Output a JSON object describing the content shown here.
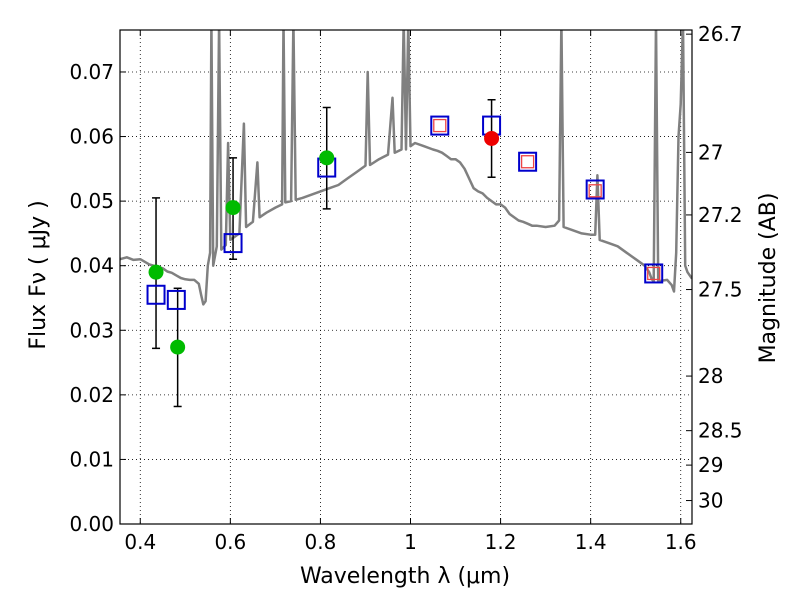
{
  "chart_data": {
    "type": "scatter",
    "xlabel": "Wavelength  λ (μm)",
    "ylabel": "Flux  Fν  ( μJy )",
    "y2label": "Magnitude (AB)",
    "xlim": [
      0.355,
      1.625
    ],
    "ylim": [
      0.0,
      0.0765
    ],
    "grid": true,
    "x_ticks": [
      {
        "value": 0.4,
        "label": "0.4"
      },
      {
        "value": 0.6,
        "label": "0.6"
      },
      {
        "value": 0.8,
        "label": "0.8"
      },
      {
        "value": 1.0,
        "label": "1"
      },
      {
        "value": 1.2,
        "label": "1.2"
      },
      {
        "value": 1.4,
        "label": "1.4"
      },
      {
        "value": 1.6,
        "label": "1.6"
      }
    ],
    "y_ticks": [
      {
        "value": 0.0,
        "label": "0.00"
      },
      {
        "value": 0.01,
        "label": "0.01"
      },
      {
        "value": 0.02,
        "label": "0.02"
      },
      {
        "value": 0.03,
        "label": "0.03"
      },
      {
        "value": 0.04,
        "label": "0.04"
      },
      {
        "value": 0.05,
        "label": "0.05"
      },
      {
        "value": 0.06,
        "label": "0.06"
      },
      {
        "value": 0.07,
        "label": "0.07"
      }
    ],
    "y2_ticks": [
      {
        "value": 26.7,
        "label": "26.7"
      },
      {
        "value": 27,
        "label": "27"
      },
      {
        "value": 27.2,
        "label": "27.2"
      },
      {
        "value": 27.5,
        "label": "27.5"
      },
      {
        "value": 28,
        "label": "28"
      },
      {
        "value": 28.5,
        "label": "28.5"
      },
      {
        "value": 29,
        "label": "29"
      },
      {
        "value": 30,
        "label": "30"
      }
    ],
    "series": [
      {
        "role": "model_sed",
        "color": "#808080",
        "points": [
          [
            0.355,
            0.041
          ],
          [
            0.37,
            0.0413
          ],
          [
            0.385,
            0.0409
          ],
          [
            0.4,
            0.041
          ],
          [
            0.41,
            0.0406
          ],
          [
            0.42,
            0.0402
          ],
          [
            0.43,
            0.04
          ],
          [
            0.44,
            0.0398
          ],
          [
            0.45,
            0.0396
          ],
          [
            0.46,
            0.0391
          ],
          [
            0.47,
            0.0389
          ],
          [
            0.48,
            0.0385
          ],
          [
            0.49,
            0.0381
          ],
          [
            0.5,
            0.0379
          ],
          [
            0.51,
            0.0378
          ],
          [
            0.52,
            0.0378
          ],
          [
            0.53,
            0.0372
          ],
          [
            0.535,
            0.0355
          ],
          [
            0.54,
            0.034
          ],
          [
            0.545,
            0.0345
          ],
          [
            0.55,
            0.04
          ],
          [
            0.555,
            0.042
          ],
          [
            0.558,
            0.078
          ],
          [
            0.562,
            0.04
          ],
          [
            0.57,
            0.043
          ],
          [
            0.575,
            0.078
          ],
          [
            0.58,
            0.0425
          ],
          [
            0.59,
            0.0432
          ],
          [
            0.595,
            0.059
          ],
          [
            0.6,
            0.044
          ],
          [
            0.61,
            0.0445
          ],
          [
            0.62,
            0.045
          ],
          [
            0.63,
            0.062
          ],
          [
            0.635,
            0.046
          ],
          [
            0.65,
            0.0468
          ],
          [
            0.66,
            0.056
          ],
          [
            0.665,
            0.0475
          ],
          [
            0.68,
            0.0482
          ],
          [
            0.7,
            0.049
          ],
          [
            0.715,
            0.0495
          ],
          [
            0.718,
            0.078
          ],
          [
            0.722,
            0.0498
          ],
          [
            0.735,
            0.05
          ],
          [
            0.74,
            0.078
          ],
          [
            0.745,
            0.0502
          ],
          [
            0.76,
            0.0505
          ],
          [
            0.78,
            0.051
          ],
          [
            0.8,
            0.0515
          ],
          [
            0.82,
            0.052
          ],
          [
            0.84,
            0.0525
          ],
          [
            0.86,
            0.0535
          ],
          [
            0.88,
            0.0545
          ],
          [
            0.9,
            0.0555
          ],
          [
            0.905,
            0.07
          ],
          [
            0.91,
            0.0556
          ],
          [
            0.93,
            0.0565
          ],
          [
            0.95,
            0.0572
          ],
          [
            0.96,
            0.066
          ],
          [
            0.965,
            0.0575
          ],
          [
            0.98,
            0.058
          ],
          [
            0.985,
            0.078
          ],
          [
            0.99,
            0.058
          ],
          [
            0.995,
            0.078
          ],
          [
            1.0,
            0.0585
          ],
          [
            1.01,
            0.059
          ],
          [
            1.03,
            0.0585
          ],
          [
            1.05,
            0.058
          ],
          [
            1.06,
            0.0578
          ],
          [
            1.07,
            0.0575
          ],
          [
            1.08,
            0.057
          ],
          [
            1.09,
            0.0565
          ],
          [
            1.1,
            0.0565
          ],
          [
            1.11,
            0.056
          ],
          [
            1.12,
            0.055
          ],
          [
            1.13,
            0.0535
          ],
          [
            1.14,
            0.052
          ],
          [
            1.15,
            0.0515
          ],
          [
            1.16,
            0.0512
          ],
          [
            1.17,
            0.0505
          ],
          [
            1.18,
            0.05
          ],
          [
            1.19,
            0.0495
          ],
          [
            1.2,
            0.0495
          ],
          [
            1.21,
            0.049
          ],
          [
            1.22,
            0.048
          ],
          [
            1.23,
            0.0475
          ],
          [
            1.24,
            0.047
          ],
          [
            1.25,
            0.0468
          ],
          [
            1.26,
            0.0465
          ],
          [
            1.27,
            0.0462
          ],
          [
            1.28,
            0.0462
          ],
          [
            1.3,
            0.046
          ],
          [
            1.32,
            0.0462
          ],
          [
            1.33,
            0.047
          ],
          [
            1.335,
            0.078
          ],
          [
            1.34,
            0.046
          ],
          [
            1.36,
            0.0455
          ],
          [
            1.38,
            0.045
          ],
          [
            1.4,
            0.0448
          ],
          [
            1.41,
            0.0448
          ],
          [
            1.415,
            0.054
          ],
          [
            1.42,
            0.044
          ],
          [
            1.44,
            0.0435
          ],
          [
            1.46,
            0.043
          ],
          [
            1.48,
            0.042
          ],
          [
            1.5,
            0.041
          ],
          [
            1.52,
            0.04
          ],
          [
            1.53,
            0.039
          ],
          [
            1.535,
            0.038
          ],
          [
            1.54,
            0.0375
          ],
          [
            1.545,
            0.078
          ],
          [
            1.55,
            0.0376
          ],
          [
            1.57,
            0.0378
          ],
          [
            1.58,
            0.037
          ],
          [
            1.585,
            0.036
          ],
          [
            1.59,
            0.042
          ],
          [
            1.595,
            0.06
          ],
          [
            1.6,
            0.065
          ],
          [
            1.605,
            0.078
          ],
          [
            1.61,
            0.04
          ],
          [
            1.615,
            0.039
          ],
          [
            1.625,
            0.038
          ]
        ]
      },
      {
        "role": "green_detections",
        "color": "#00bb00",
        "points": [
          {
            "x": 0.435,
            "y": 0.039,
            "ylo": 0.0272,
            "yhi": 0.0505
          },
          {
            "x": 0.483,
            "y": 0.0274,
            "ylo": 0.0182,
            "yhi": 0.0365
          },
          {
            "x": 0.606,
            "y": 0.049,
            "ylo": 0.041,
            "yhi": 0.0567
          },
          {
            "x": 0.814,
            "y": 0.0567,
            "ylo": 0.0488,
            "yhi": 0.0645
          }
        ]
      },
      {
        "role": "red_detection",
        "color": "#ee0000",
        "points": [
          {
            "x": 1.18,
            "y": 0.0597,
            "ylo": 0.0537,
            "yhi": 0.0657
          }
        ]
      },
      {
        "role": "blue_open_squares",
        "color": "#0000cc",
        "points": [
          {
            "x": 0.435,
            "y": 0.0355
          },
          {
            "x": 0.48,
            "y": 0.0347
          },
          {
            "x": 0.606,
            "y": 0.0435
          },
          {
            "x": 0.814,
            "y": 0.0552
          },
          {
            "x": 1.065,
            "y": 0.0617
          },
          {
            "x": 1.18,
            "y": 0.0617
          },
          {
            "x": 1.26,
            "y": 0.0561
          },
          {
            "x": 1.41,
            "y": 0.0518
          },
          {
            "x": 1.54,
            "y": 0.0388
          }
        ]
      },
      {
        "role": "red_open_squares",
        "color": "#ee4444",
        "points": [
          {
            "x": 1.065,
            "y": 0.0617
          },
          {
            "x": 1.26,
            "y": 0.0561
          },
          {
            "x": 1.41,
            "y": 0.0516
          },
          {
            "x": 1.54,
            "y": 0.0388
          }
        ]
      }
    ]
  }
}
